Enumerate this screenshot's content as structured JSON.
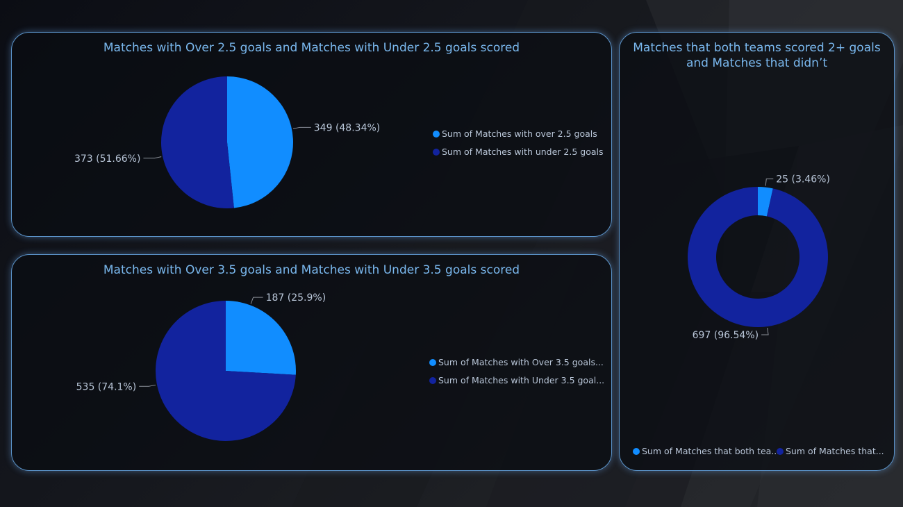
{
  "colors": {
    "series_primary": "#118dff",
    "series_secondary": "#12239e",
    "title_text": "#7ab8ee",
    "label_text": "#b9c6d8",
    "panel_border": "#5b93c9"
  },
  "chart_data": [
    {
      "type": "pie",
      "title": "Matches with Over 2.5 goals and Matches with Under 2.5 goals scored",
      "legend_position": "right",
      "series": [
        {
          "name": "Sum of Matches with over 2.5 goals",
          "value": 349,
          "label": "349 (48.34%)",
          "color": "#118dff"
        },
        {
          "name": "Sum of Matches with under 2.5 goals",
          "value": 373,
          "label": "373 (51.66%)",
          "color": "#12239e"
        }
      ]
    },
    {
      "type": "pie",
      "title": "Matches with Over 3.5 goals and Matches with Under 3.5 goals scored",
      "legend_position": "right",
      "series": [
        {
          "name": "Sum of Matches with Over 3.5 goals...",
          "value": 187,
          "label": "187 (25.9%)",
          "color": "#118dff"
        },
        {
          "name": "Sum of Matches with Under 3.5 goal...",
          "value": 535,
          "label": "535 (74.1%)",
          "color": "#12239e"
        }
      ]
    },
    {
      "type": "donut",
      "title_lines": [
        "Matches that both teams scored 2+ goals",
        "and Matches that didn’t"
      ],
      "legend_position": "bottom",
      "series": [
        {
          "name": "Sum of Matches that both tea...",
          "value": 25,
          "label": "25 (3.46%)",
          "color": "#118dff"
        },
        {
          "name": "Sum of Matches that...",
          "value": 697,
          "label": "697 (96.54%)",
          "color": "#12239e"
        }
      ]
    }
  ]
}
